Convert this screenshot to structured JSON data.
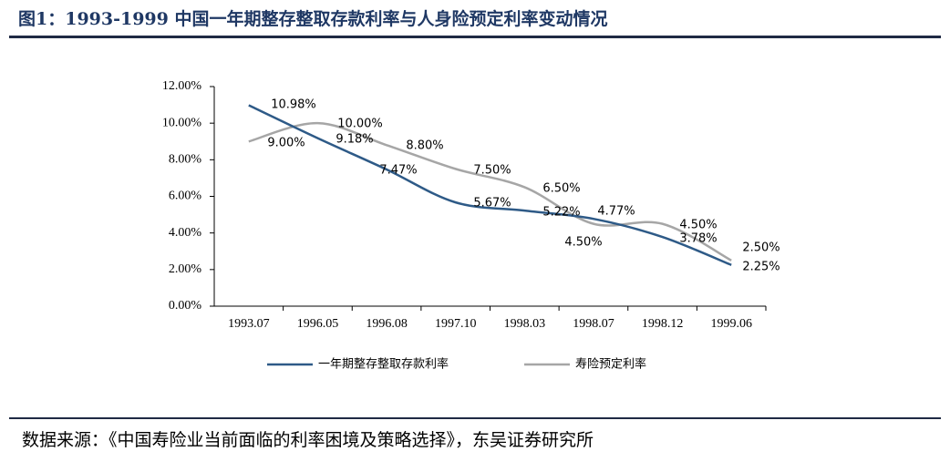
{
  "title": "图1：1993-1999 中国一年期整存整取存款利率与人身险预定利率变动情况",
  "source": "数据来源：《中国寿险业当前面临的利率困境及策略选择》，东吴证券研究所",
  "chart_data": {
    "type": "line",
    "categories": [
      "1993.07",
      "1996.05",
      "1996.08",
      "1997.10",
      "1998.03",
      "1998.07",
      "1998.12",
      "1999.06"
    ],
    "series": [
      {
        "name": "一年期整存整取存款利率",
        "color": "#2e5a87",
        "values": [
          10.98,
          9.18,
          7.47,
          5.67,
          5.22,
          4.77,
          3.78,
          2.25
        ],
        "value_labels": [
          "10.98%",
          "9.18%",
          "7.47%",
          "5.67%",
          "5.22%",
          "4.77%",
          "3.78%",
          "2.25%"
        ]
      },
      {
        "name": "寿险预定利率",
        "color": "#a6a6a6",
        "values": [
          9.0,
          10.0,
          8.8,
          7.5,
          6.5,
          4.5,
          4.5,
          2.5
        ],
        "value_labels": [
          "9.00%",
          "10.00%",
          "8.80%",
          "7.50%",
          "6.50%",
          "4.50%",
          "4.50%",
          "2.50%"
        ]
      }
    ],
    "ylim": [
      0,
      12
    ],
    "yticks": [
      {
        "value": 0,
        "label": "0.00%"
      },
      {
        "value": 2,
        "label": "2.00%"
      },
      {
        "value": 4,
        "label": "4.00%"
      },
      {
        "value": 6,
        "label": "6.00%"
      },
      {
        "value": 8,
        "label": "8.00%"
      },
      {
        "value": 10,
        "label": "10.00%"
      },
      {
        "value": 12,
        "label": "12.00%"
      }
    ],
    "legend": "bottom"
  }
}
